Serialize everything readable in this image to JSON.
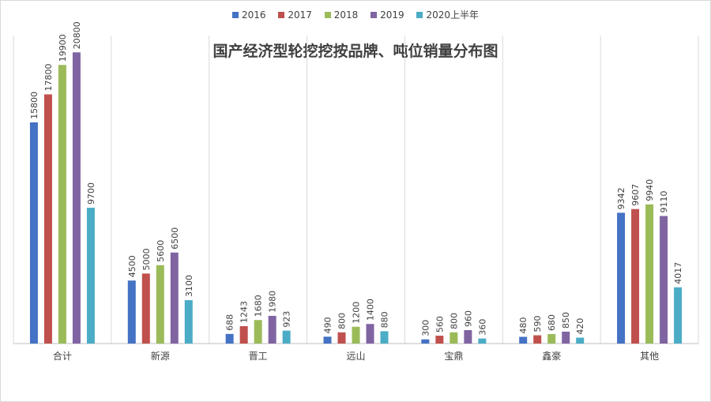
{
  "chart_data": {
    "type": "bar",
    "title": "国产经济型轮挖挖按品牌、吨位销量分布图",
    "categories": [
      "合计",
      "新源",
      "晋工",
      "远山",
      "宝鼎",
      "鑫豪",
      "其他"
    ],
    "series": [
      {
        "name": "2016",
        "color": "#4472c4",
        "values": [
          15800,
          4500,
          688,
          490,
          300,
          480,
          9342
        ]
      },
      {
        "name": "2017",
        "color": "#c0504d",
        "values": [
          17800,
          5000,
          1243,
          800,
          560,
          590,
          9607
        ]
      },
      {
        "name": "2018",
        "color": "#9bbb59",
        "values": [
          19900,
          5600,
          1680,
          1200,
          800,
          680,
          9940
        ]
      },
      {
        "name": "2019",
        "color": "#8064a2",
        "values": [
          20800,
          6500,
          1980,
          1400,
          960,
          850,
          9110
        ]
      },
      {
        "name": "2020上半年",
        "color": "#4bacc6",
        "values": [
          9700,
          3100,
          923,
          880,
          360,
          420,
          4017
        ]
      }
    ],
    "ylim": [
      0,
      22000
    ],
    "legend_position": "top-center",
    "grid": "vertical category separators"
  }
}
